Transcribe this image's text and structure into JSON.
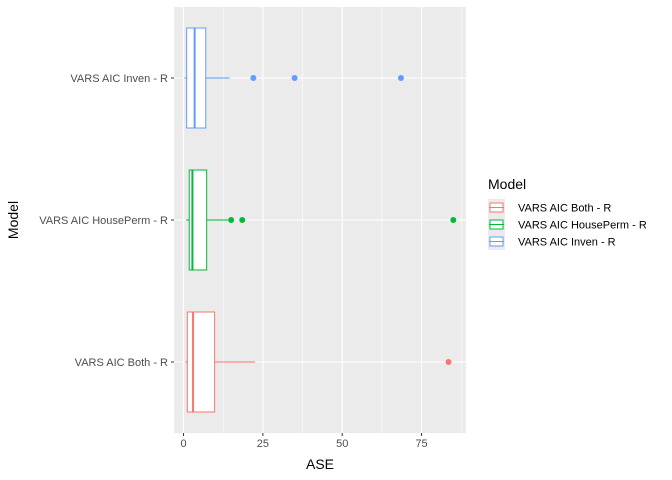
{
  "chart_data": {
    "type": "boxplot",
    "orientation": "horizontal",
    "xlabel": "ASE",
    "ylabel": "Model",
    "xlim": [
      -3,
      89
    ],
    "x_ticks": [
      0,
      25,
      50,
      75
    ],
    "x_tick_labels": [
      "0",
      "25",
      "50",
      "75"
    ],
    "categories": [
      "VARS AIC Both - R",
      "VARS AIC HousePerm - R",
      "VARS AIC Inven - R"
    ],
    "series": [
      {
        "name": "VARS AIC Both - R",
        "color": "#F8766D",
        "whisker_low": 0.5,
        "q1": 1.2,
        "median": 3.0,
        "q3": 9.8,
        "whisker_high": 22.5,
        "outliers": [
          83.5
        ]
      },
      {
        "name": "VARS AIC HousePerm - R",
        "color": "#00BA38",
        "whisker_low": 0.8,
        "q1": 1.8,
        "median": 2.8,
        "q3": 7.3,
        "whisker_high": 14.0,
        "outliers": [
          15.0,
          18.5,
          85.0
        ]
      },
      {
        "name": "VARS AIC Inven - R",
        "color": "#619CFF",
        "whisker_low": 0.3,
        "q1": 1.0,
        "median": 3.5,
        "q3": 7.0,
        "whisker_high": 14.5,
        "outliers": [
          22.0,
          35.0,
          68.5
        ]
      }
    ],
    "grid": true,
    "legend": {
      "title": "Model",
      "position": "right",
      "entries": [
        "VARS AIC Both - R",
        "VARS AIC HousePerm - R",
        "VARS AIC Inven - R"
      ]
    }
  }
}
